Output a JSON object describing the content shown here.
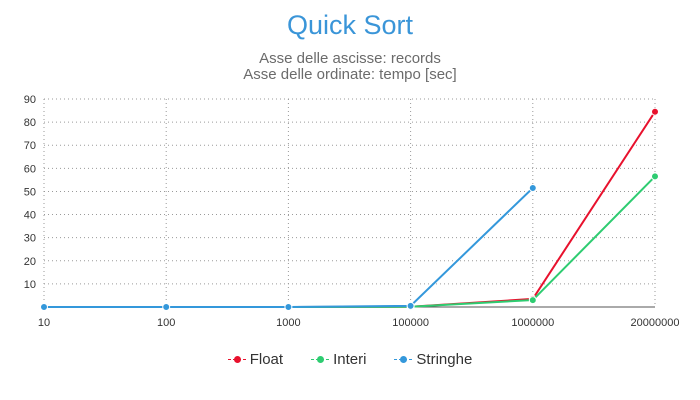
{
  "chart_data": {
    "type": "line",
    "title": "Quick Sort",
    "subtitle_lines": [
      "Asse delle ascisse: records",
      "Asse delle ordinate: tempo [sec]"
    ],
    "categories": [
      "10",
      "100",
      "1000",
      "100000",
      "1000000",
      "20000000"
    ],
    "y_ticks": [
      "10",
      "20",
      "30",
      "40",
      "50",
      "60",
      "70",
      "80",
      "90"
    ],
    "ylim": [
      0,
      90
    ],
    "grid": true,
    "legend_position": "bottom",
    "series": [
      {
        "name": "Float",
        "color": "#e8112d",
        "values": [
          0,
          0,
          0,
          0.1,
          3.5,
          84.5
        ]
      },
      {
        "name": "Interi",
        "color": "#2ecc71",
        "values": [
          0,
          0,
          0,
          0.1,
          3.0,
          56.5
        ]
      },
      {
        "name": "Stringhe",
        "color": "#3498db",
        "values": [
          0,
          0,
          0,
          0.5,
          51.5,
          null
        ]
      }
    ]
  }
}
